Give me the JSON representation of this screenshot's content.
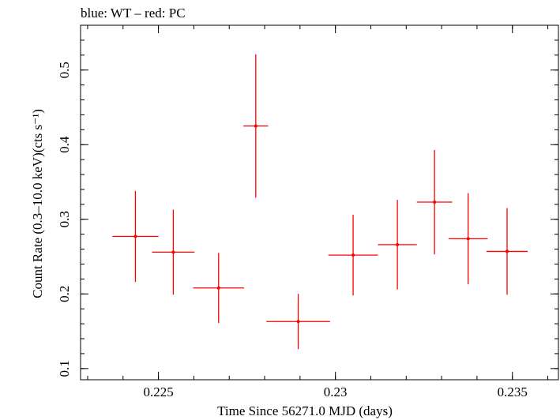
{
  "chart_data": {
    "type": "scatter",
    "title": "blue: WT – red: PC",
    "xlabel": "Time Since 56271.0 MJD (days)",
    "ylabel": "Count Rate (0.3–10.0 keV)(cts s⁻¹)",
    "xlim": [
      0.2228,
      0.2363
    ],
    "ylim": [
      0.085,
      0.56
    ],
    "x_ticks": [
      {
        "value": 0.225,
        "label": "0.225"
      },
      {
        "value": 0.23,
        "label": "0.23"
      },
      {
        "value": 0.235,
        "label": "0.235"
      }
    ],
    "y_ticks": [
      {
        "value": 0.1,
        "label": "0.1"
      },
      {
        "value": 0.2,
        "label": "0.2"
      },
      {
        "value": 0.3,
        "label": "0.3"
      },
      {
        "value": 0.4,
        "label": "0.4"
      },
      {
        "value": 0.5,
        "label": "0.5"
      }
    ],
    "series": [
      {
        "name": "PC",
        "color": "#ff0000",
        "points": [
          {
            "x": 0.22435,
            "xerr": 0.00065,
            "y": 0.277,
            "yerr_low": 0.061,
            "yerr_high": 0.061
          },
          {
            "x": 0.22542,
            "xerr": 0.0006,
            "y": 0.256,
            "yerr_low": 0.057,
            "yerr_high": 0.057
          },
          {
            "x": 0.2267,
            "xerr": 0.00072,
            "y": 0.208,
            "yerr_low": 0.047,
            "yerr_high": 0.047
          },
          {
            "x": 0.22775,
            "xerr": 0.00035,
            "y": 0.425,
            "yerr_low": 0.096,
            "yerr_high": 0.096
          },
          {
            "x": 0.22895,
            "xerr": 0.0009,
            "y": 0.163,
            "yerr_low": 0.037,
            "yerr_high": 0.037
          },
          {
            "x": 0.2305,
            "xerr": 0.0007,
            "y": 0.252,
            "yerr_low": 0.054,
            "yerr_high": 0.054
          },
          {
            "x": 0.23175,
            "xerr": 0.00055,
            "y": 0.266,
            "yerr_low": 0.06,
            "yerr_high": 0.06
          },
          {
            "x": 0.2328,
            "xerr": 0.0005,
            "y": 0.323,
            "yerr_low": 0.07,
            "yerr_high": 0.07
          },
          {
            "x": 0.23375,
            "xerr": 0.00055,
            "y": 0.274,
            "yerr_low": 0.061,
            "yerr_high": 0.061
          },
          {
            "x": 0.23485,
            "xerr": 0.00058,
            "y": 0.257,
            "yerr_low": 0.058,
            "yerr_high": 0.058
          }
        ]
      }
    ]
  }
}
